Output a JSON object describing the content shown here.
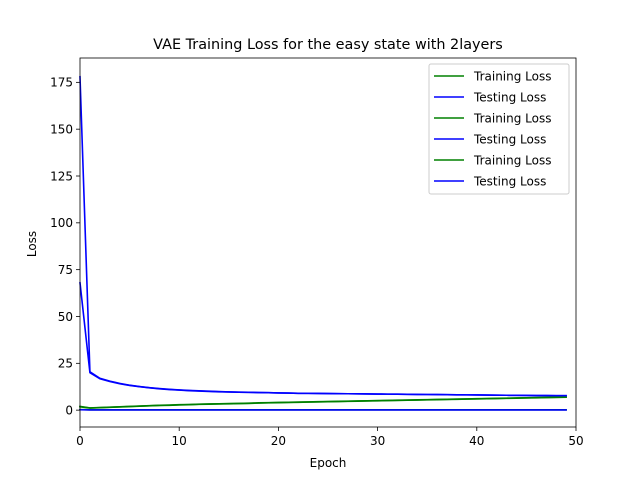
{
  "chart_data": {
    "type": "line",
    "title": "VAE Training Loss for the easy state with 2layers",
    "xlabel": "Epoch",
    "ylabel": "Loss",
    "xlim": [
      0,
      50
    ],
    "ylim": [
      -9,
      188
    ],
    "xticks": [
      0,
      10,
      20,
      30,
      40,
      50
    ],
    "yticks": [
      0,
      25,
      50,
      75,
      100,
      125,
      150,
      175
    ],
    "grid": false,
    "legend_position": "top-right",
    "x": [
      0,
      1,
      2,
      3,
      4,
      5,
      6,
      7,
      8,
      9,
      10,
      11,
      12,
      13,
      14,
      15,
      16,
      17,
      18,
      19,
      20,
      21,
      22,
      23,
      24,
      25,
      26,
      27,
      28,
      29,
      30,
      31,
      32,
      33,
      34,
      35,
      36,
      37,
      38,
      39,
      40,
      41,
      42,
      43,
      44,
      45,
      46,
      47,
      48,
      49
    ],
    "series": [
      {
        "name": "Training Loss",
        "color": "#008000",
        "values": [
          2.0,
          1.2,
          1.4,
          1.6,
          1.8,
          2.0,
          2.2,
          2.4,
          2.6,
          2.7,
          2.9,
          3.0,
          3.2,
          3.3,
          3.4,
          3.5,
          3.6,
          3.7,
          3.9,
          4.0,
          4.1,
          4.2,
          4.3,
          4.4,
          4.5,
          4.6,
          4.7,
          4.8,
          4.9,
          5.0,
          5.1,
          5.2,
          5.3,
          5.4,
          5.5,
          5.6,
          5.7,
          5.8,
          5.9,
          6.0,
          6.1,
          6.2,
          6.3,
          6.4,
          6.5,
          6.6,
          6.7,
          6.8,
          6.9,
          7.0
        ]
      },
      {
        "name": "Testing Loss",
        "color": "#0000ff",
        "values": [
          178.0,
          20.5,
          17.0,
          15.5,
          14.3,
          13.3,
          12.6,
          12.0,
          11.5,
          11.1,
          10.8,
          10.5,
          10.3,
          10.1,
          9.9,
          9.7,
          9.6,
          9.5,
          9.4,
          9.3,
          9.2,
          9.1,
          9.0,
          8.95,
          8.9,
          8.85,
          8.8,
          8.75,
          8.7,
          8.65,
          8.6,
          8.55,
          8.5,
          8.45,
          8.4,
          8.35,
          8.3,
          8.25,
          8.2,
          8.15,
          8.1,
          8.05,
          8.0,
          7.95,
          7.9,
          7.85,
          7.8,
          7.8,
          7.75,
          7.75
        ]
      },
      {
        "name": "Training Loss",
        "color": "#008000",
        "values": [
          1.8,
          1.1,
          1.3,
          1.5,
          1.7,
          1.9,
          2.1,
          2.3,
          2.5,
          2.6,
          2.8,
          2.9,
          3.1,
          3.2,
          3.3,
          3.4,
          3.5,
          3.6,
          3.8,
          3.9,
          4.0,
          4.1,
          4.2,
          4.3,
          4.4,
          4.5,
          4.6,
          4.7,
          4.8,
          4.9,
          5.0,
          5.1,
          5.2,
          5.3,
          5.4,
          5.5,
          5.6,
          5.7,
          5.8,
          5.9,
          6.0,
          6.1,
          6.2,
          6.3,
          6.4,
          6.5,
          6.6,
          6.7,
          6.8,
          6.9
        ]
      },
      {
        "name": "Testing Loss",
        "color": "#0000ff",
        "values": [
          68.0,
          20.0,
          16.8,
          15.3,
          14.1,
          13.2,
          12.5,
          11.9,
          11.4,
          11.0,
          10.7,
          10.4,
          10.2,
          10.0,
          9.8,
          9.7,
          9.6,
          9.5,
          9.4,
          9.3,
          9.2,
          9.1,
          9.0,
          8.95,
          8.9,
          8.85,
          8.8,
          8.75,
          8.7,
          8.65,
          8.6,
          8.55,
          8.5,
          8.45,
          8.4,
          8.35,
          8.3,
          8.25,
          8.2,
          8.15,
          8.1,
          8.05,
          8.0,
          7.95,
          7.9,
          7.85,
          7.8,
          7.8,
          7.75,
          7.75
        ]
      },
      {
        "name": "Training Loss",
        "color": "#008000",
        "values": [
          0.3,
          0.2,
          0.2,
          0.2,
          0.2,
          0.2,
          0.2,
          0.2,
          0.2,
          0.2,
          0.2,
          0.2,
          0.2,
          0.2,
          0.2,
          0.2,
          0.2,
          0.2,
          0.2,
          0.2,
          0.2,
          0.2,
          0.2,
          0.2,
          0.2,
          0.2,
          0.2,
          0.2,
          0.2,
          0.2,
          0.2,
          0.2,
          0.2,
          0.2,
          0.2,
          0.2,
          0.2,
          0.2,
          0.2,
          0.2,
          0.2,
          0.2,
          0.2,
          0.2,
          0.2,
          0.2,
          0.2,
          0.2,
          0.2,
          0.2
        ]
      },
      {
        "name": "Testing Loss",
        "color": "#0000ff",
        "values": [
          0.2,
          0.1,
          0.1,
          0.1,
          0.1,
          0.1,
          0.1,
          0.1,
          0.1,
          0.1,
          0.1,
          0.1,
          0.1,
          0.1,
          0.1,
          0.1,
          0.1,
          0.1,
          0.1,
          0.1,
          0.1,
          0.1,
          0.1,
          0.1,
          0.1,
          0.1,
          0.1,
          0.1,
          0.1,
          0.1,
          0.1,
          0.1,
          0.1,
          0.1,
          0.1,
          0.1,
          0.1,
          0.1,
          0.1,
          0.1,
          0.1,
          0.1,
          0.1,
          0.1,
          0.1,
          0.1,
          0.1,
          0.1,
          0.1,
          0.1
        ]
      }
    ]
  }
}
